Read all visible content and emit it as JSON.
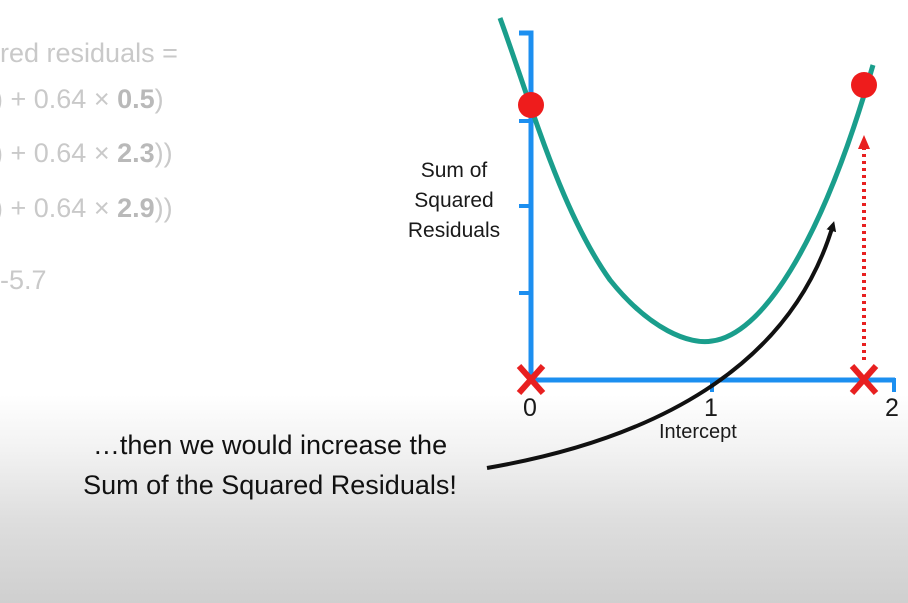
{
  "background_equation": {
    "line1": "red residuals =",
    "row2_pre": ") + 0.64 × ",
    "row2_val": "0.5",
    "row2_post": ")",
    "row3_pre": ") + 0.64 × ",
    "row3_val": "2.3",
    "row3_post": "))",
    "row4_pre": ") + 0.64 × ",
    "row4_val": "2.9",
    "row4_post": "))",
    "line5": "-5.7"
  },
  "plot": {
    "ylabel": "Sum of\nSquared\nResiduals",
    "xlabel": "Intercept",
    "xticks": [
      "0",
      "1",
      "2"
    ]
  },
  "caption": "…then we would increase the Sum of the Squared Residuals!",
  "colors": {
    "axis": "#1c8ff0",
    "curve": "#1a9e8c",
    "point": "#ee1c1c",
    "marker": "#e82020",
    "arrow": "#111111"
  }
}
